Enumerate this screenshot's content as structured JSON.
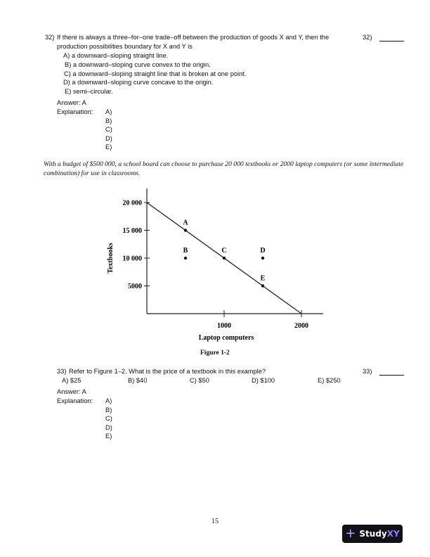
{
  "q32": {
    "number": "32)",
    "text1": "If there is always a three–for–one trade–off between the production of goods X and Y, then the",
    "text2": "production possibilities boundary for X and Y is",
    "margin_label": "32)",
    "options": [
      "A) a downward–sloping straight line.",
      "B) a downward–sloping curve convex to the origin.",
      "C) a downward–sloping straight line that is broken at one point.",
      "D) a downward–sloping curve concave to the origin.",
      "E) semi–circular."
    ],
    "answer": "Answer:  A",
    "explanation_label": "Explanation:",
    "explanation_items": [
      "A)",
      "B)",
      "C)",
      "D)",
      "E)"
    ]
  },
  "scenario": {
    "line1": "With a budget of $500 000, a school board can choose to purchase 20 000 textbooks or 2000 laptop computers (or some intermediate",
    "line2": "combination) for use in classrooms."
  },
  "chart_data": {
    "type": "line",
    "xlabel": "Laptop computers",
    "ylabel": "Textbooks",
    "xlim": [
      0,
      2300
    ],
    "ylim": [
      0,
      22500
    ],
    "xticks": [
      {
        "value": 1000,
        "label": "1000"
      },
      {
        "value": 2000,
        "label": "2000"
      }
    ],
    "yticks": [
      {
        "value": 20000,
        "label": "20 000"
      },
      {
        "value": 15000,
        "label": "15 000"
      },
      {
        "value": 10000,
        "label": "10 000"
      },
      {
        "value": 5000,
        "label": "5000"
      }
    ],
    "line": {
      "x": [
        0,
        2000
      ],
      "y": [
        20000,
        0
      ]
    },
    "points": [
      {
        "label": "A",
        "x": 500,
        "y": 15000
      },
      {
        "label": "B",
        "x": 500,
        "y": 10000
      },
      {
        "label": "C",
        "x": 1000,
        "y": 10000
      },
      {
        "label": "D",
        "x": 1500,
        "y": 10000
      },
      {
        "label": "E",
        "x": 1500,
        "y": 5000
      }
    ],
    "grid": false,
    "caption": "Figure 1-2"
  },
  "q33": {
    "number": "33)",
    "text": "Refer to Figure 1–2. What is the price of a textbook in this example?",
    "margin_label": "33)",
    "options": [
      "A) $25",
      "B) $40",
      "C) $50",
      "D) $100",
      "E) $250"
    ],
    "answer": "Answer:  A",
    "explanation_label": "Explanation:",
    "explanation_items": [
      "A)",
      "B)",
      "C)",
      "D)",
      "E)"
    ]
  },
  "footer": {
    "page_number": "15",
    "logo": {
      "prefix": "Study",
      "suffix": "XY"
    }
  }
}
